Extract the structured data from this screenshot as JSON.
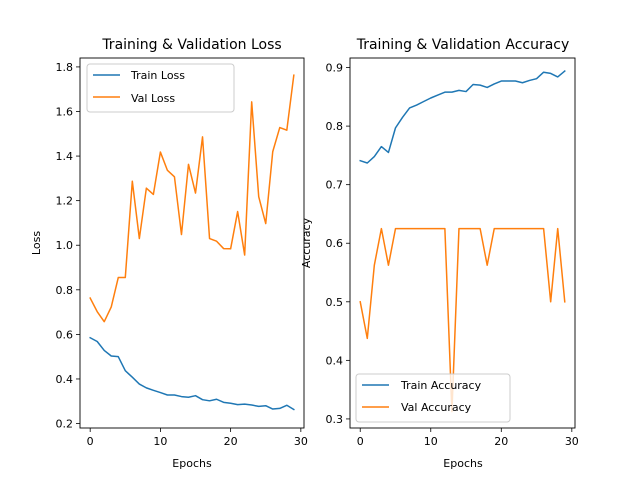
{
  "chart_data": [
    {
      "type": "line",
      "title": "Training & Validation Loss",
      "xlabel": "Epochs",
      "ylabel": "Loss",
      "xlim": [
        -1.45,
        30.45
      ],
      "ylim": [
        0.18,
        1.84
      ],
      "xticks": [
        0,
        10,
        20,
        30
      ],
      "yticks": [
        0.2,
        0.4,
        0.6,
        0.8,
        1.0,
        1.2,
        1.4,
        1.6,
        1.8
      ],
      "ytick_labels": [
        "0.2",
        "0.4",
        "0.6",
        "0.8",
        "1.0",
        "1.2",
        "1.4",
        "1.6",
        "1.8"
      ],
      "grid": false,
      "legend_position": "upper-left",
      "x": [
        0,
        1,
        2,
        3,
        4,
        5,
        6,
        7,
        8,
        9,
        10,
        11,
        12,
        13,
        14,
        15,
        16,
        17,
        18,
        19,
        20,
        21,
        22,
        23,
        24,
        25,
        26,
        27,
        28,
        29
      ],
      "series": [
        {
          "name": "Train Loss",
          "color": "#1f77b4",
          "values": [
            0.585,
            0.568,
            0.528,
            0.503,
            0.5,
            0.437,
            0.408,
            0.377,
            0.36,
            0.349,
            0.339,
            0.328,
            0.328,
            0.321,
            0.318,
            0.325,
            0.307,
            0.302,
            0.309,
            0.295,
            0.291,
            0.285,
            0.287,
            0.283,
            0.277,
            0.28,
            0.265,
            0.268,
            0.282,
            0.263
          ]
        },
        {
          "name": "Val Loss",
          "color": "#ff7f0e",
          "values": [
            0.763,
            0.702,
            0.657,
            0.723,
            0.855,
            0.855,
            1.287,
            1.03,
            1.256,
            1.228,
            1.418,
            1.336,
            1.307,
            1.048,
            1.363,
            1.234,
            1.486,
            1.03,
            1.018,
            0.985,
            0.984,
            1.151,
            0.956,
            1.643,
            1.218,
            1.097,
            1.42,
            1.528,
            1.516,
            1.763
          ]
        }
      ]
    },
    {
      "type": "line",
      "title": "Training & Validation Accuracy",
      "xlabel": "Epochs",
      "ylabel": "Accuracy",
      "xlim": [
        -1.45,
        30.45
      ],
      "ylim": [
        0.2845,
        0.9163
      ],
      "xticks": [
        0,
        10,
        20,
        30
      ],
      "yticks": [
        0.3,
        0.4,
        0.5,
        0.6,
        0.7,
        0.8,
        0.9
      ],
      "ytick_labels": [
        "0.3",
        "0.4",
        "0.5",
        "0.6",
        "0.7",
        "0.8",
        "0.9"
      ],
      "grid": false,
      "legend_position": "lower-left",
      "x": [
        0,
        1,
        2,
        3,
        4,
        5,
        6,
        7,
        8,
        9,
        10,
        11,
        12,
        13,
        14,
        15,
        16,
        17,
        18,
        19,
        20,
        21,
        22,
        23,
        24,
        25,
        26,
        27,
        28,
        29
      ],
      "series": [
        {
          "name": "Train Accuracy",
          "color": "#1f77b4",
          "values": [
            0.741,
            0.737,
            0.748,
            0.765,
            0.755,
            0.797,
            0.815,
            0.831,
            0.836,
            0.842,
            0.848,
            0.853,
            0.858,
            0.858,
            0.861,
            0.859,
            0.871,
            0.87,
            0.866,
            0.872,
            0.877,
            0.877,
            0.877,
            0.874,
            0.878,
            0.881,
            0.892,
            0.89,
            0.884,
            0.894
          ]
        },
        {
          "name": "Val Accuracy",
          "color": "#ff7f0e",
          "values": [
            0.5,
            0.4375,
            0.5625,
            0.625,
            0.5625,
            0.625,
            0.625,
            0.625,
            0.625,
            0.625,
            0.625,
            0.625,
            0.625,
            0.3125,
            0.625,
            0.625,
            0.625,
            0.625,
            0.5625,
            0.625,
            0.625,
            0.625,
            0.625,
            0.625,
            0.625,
            0.625,
            0.625,
            0.5,
            0.625,
            0.5
          ]
        }
      ]
    }
  ]
}
